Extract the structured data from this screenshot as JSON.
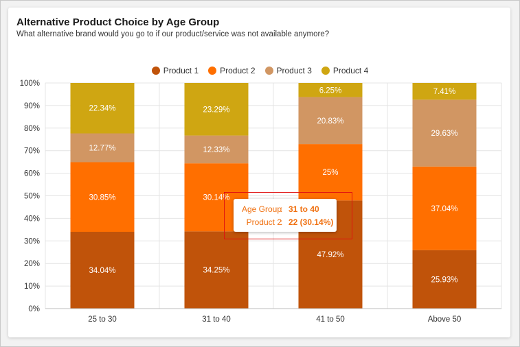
{
  "colors": {
    "product1": "#c0530a",
    "product2": "#ff6f00",
    "product3": "#d19663",
    "product4": "#cfa612"
  },
  "chart_data": {
    "type": "bar",
    "stacked": true,
    "title": "Alternative Product Choice by Age Group",
    "subtitle": "What alternative brand would you go to if our product/service was not available anymore?",
    "categories": [
      "25 to 30",
      "31 to 40",
      "41 to 50",
      "Above 50"
    ],
    "series": [
      {
        "name": "Product 1",
        "values": [
          34.04,
          34.25,
          47.92,
          25.93
        ],
        "labels": [
          "34.04%",
          "34.25%",
          "47.92%",
          "25.93%"
        ]
      },
      {
        "name": "Product 2",
        "values": [
          30.85,
          30.14,
          25,
          37.04
        ],
        "labels": [
          "30.85%",
          "30.14%",
          "25%",
          "37.04%"
        ]
      },
      {
        "name": "Product 3",
        "values": [
          12.77,
          12.33,
          20.83,
          29.63
        ],
        "labels": [
          "12.77%",
          "12.33%",
          "20.83%",
          "29.63%"
        ]
      },
      {
        "name": "Product 4",
        "values": [
          22.34,
          23.29,
          6.25,
          7.41
        ],
        "labels": [
          "22.34%",
          "23.29%",
          "6.25%",
          "7.41%"
        ]
      }
    ],
    "yticks": [
      "0%",
      "10%",
      "20%",
      "30%",
      "40%",
      "50%",
      "60%",
      "70%",
      "80%",
      "90%",
      "100%"
    ],
    "ylim": [
      0,
      100
    ],
    "legend_position": "top-center",
    "grid": true
  },
  "tooltip": {
    "label1": "Age Group",
    "value1": "31 to 40",
    "label2": "Product 2",
    "value2": "22 (30.14%)",
    "separator": ":"
  }
}
